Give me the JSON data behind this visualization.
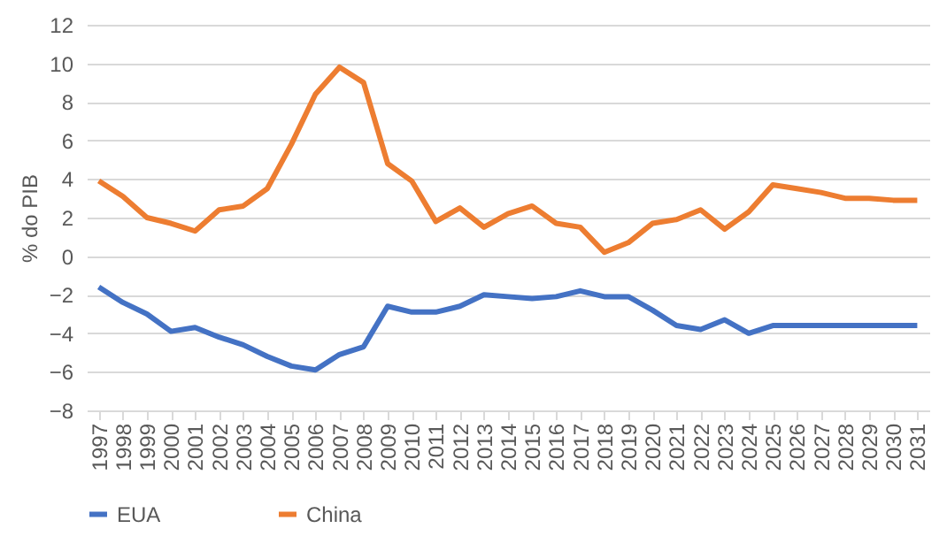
{
  "chart_data": {
    "type": "line",
    "ylabel": "% do PIB",
    "categories": [
      "1997",
      "1998",
      "1999",
      "2000",
      "2001",
      "2002",
      "2003",
      "2004",
      "2005",
      "2006",
      "2007",
      "2008",
      "2009",
      "2010",
      "2011",
      "2012",
      "2013",
      "2014",
      "2015",
      "2016",
      "2017",
      "2018",
      "2019",
      "2020",
      "2021",
      "2022",
      "2023",
      "2024",
      "2025",
      "2026",
      "2027",
      "2028",
      "2029",
      "2030",
      "2031"
    ],
    "series": [
      {
        "name": "EUA",
        "color": "#4472c4",
        "values": [
          -1.6,
          -2.4,
          -3.0,
          -3.9,
          -3.7,
          -4.2,
          -4.6,
          -5.2,
          -5.7,
          -5.9,
          -5.1,
          -4.7,
          -2.6,
          -2.9,
          -2.9,
          -2.6,
          -2.0,
          -2.1,
          -2.2,
          -2.1,
          -1.8,
          -2.1,
          -2.1,
          -2.8,
          -3.6,
          -3.8,
          -3.3,
          -4.0,
          -3.6,
          -3.6,
          -3.6,
          -3.6,
          -3.6,
          -3.6,
          -3.6
        ]
      },
      {
        "name": "China",
        "color": "#ed7d31",
        "values": [
          3.9,
          3.1,
          2.0,
          1.7,
          1.3,
          2.4,
          2.6,
          3.5,
          5.8,
          8.4,
          9.8,
          9.0,
          4.8,
          3.9,
          1.8,
          2.5,
          1.5,
          2.2,
          2.6,
          1.7,
          1.5,
          0.2,
          0.7,
          1.7,
          1.9,
          2.4,
          1.4,
          2.3,
          3.7,
          3.5,
          3.3,
          3.0,
          3.0,
          2.9,
          2.9
        ]
      }
    ],
    "ylim": [
      -8,
      12
    ],
    "yticks": [
      -8,
      -6,
      -4,
      -2,
      0,
      2,
      4,
      6,
      8,
      10,
      12
    ],
    "grid": "y",
    "legend": "bottom",
    "marker": "none",
    "line_style": "solid"
  }
}
